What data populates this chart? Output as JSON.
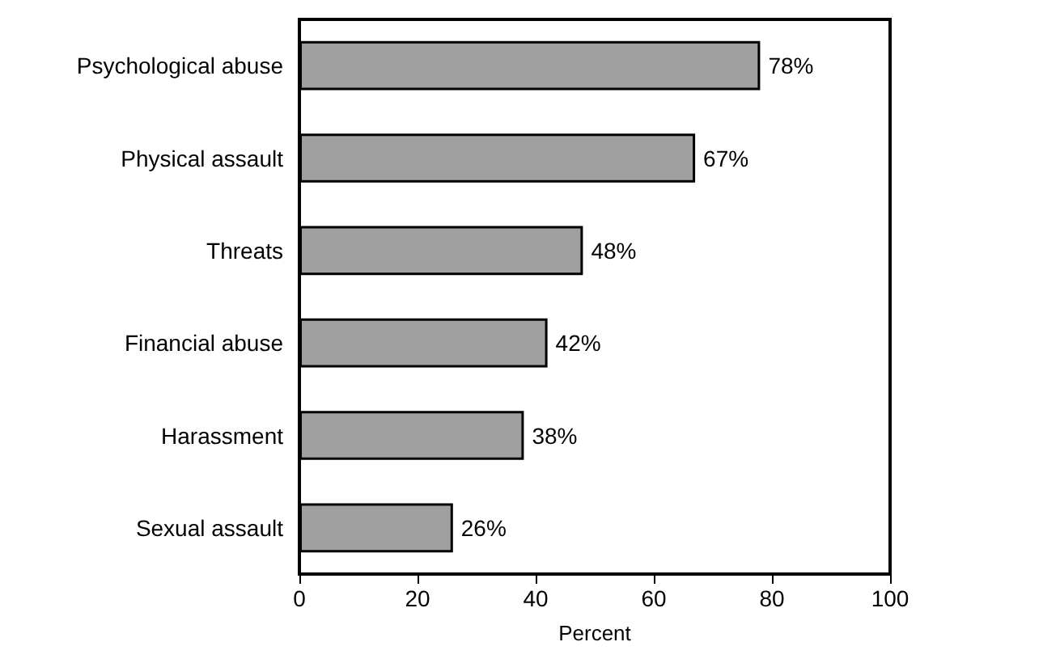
{
  "chart_data": {
    "type": "bar",
    "orientation": "horizontal",
    "xlabel": "Percent",
    "categories": [
      "Psychological abuse",
      "Physical assault",
      "Threats",
      "Financial abuse",
      "Harassment",
      "Sexual assault"
    ],
    "values": [
      78,
      67,
      48,
      42,
      38,
      26
    ],
    "value_labels": [
      "78%",
      "67%",
      "48%",
      "42%",
      "38%",
      "26%"
    ],
    "color": "#a0a0a0",
    "xlim": [
      0,
      100
    ],
    "xticks": [
      0,
      20,
      40,
      60,
      80,
      100
    ],
    "grid": false
  }
}
